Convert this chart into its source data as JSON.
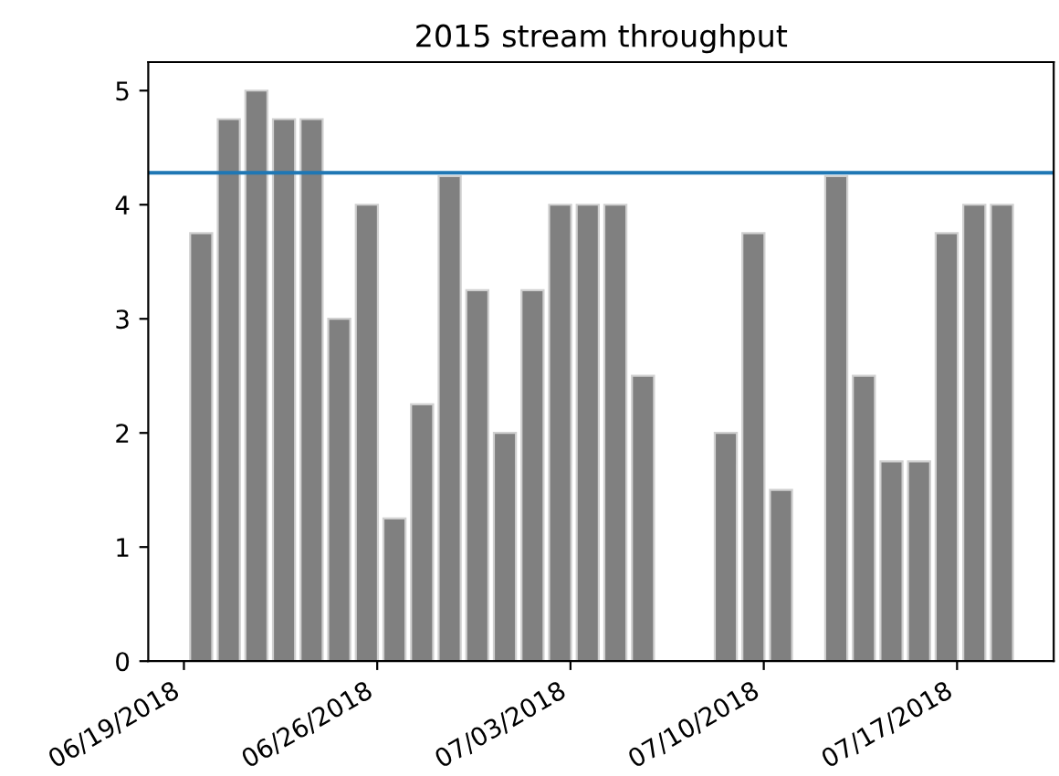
{
  "chart_data": {
    "type": "bar",
    "title": "2015 stream throughput",
    "x": [
      "2018-06-19T15:00",
      "2018-06-20T15:00",
      "2018-06-21T15:00",
      "2018-06-22T15:00",
      "2018-06-23T15:00",
      "2018-06-24T15:00",
      "2018-06-25T15:00",
      "2018-06-26T15:00",
      "2018-06-27T15:00",
      "2018-06-28T15:00",
      "2018-06-29T15:00",
      "2018-06-30T15:00",
      "2018-07-01T15:00",
      "2018-07-02T15:00",
      "2018-07-03T15:00",
      "2018-07-04T15:00",
      "2018-07-05T15:00",
      "2018-07-08T15:00",
      "2018-07-09T15:00",
      "2018-07-10T15:00",
      "2018-07-12T15:00",
      "2018-07-13T15:00",
      "2018-07-14T15:00",
      "2018-07-15T15:00",
      "2018-07-16T15:00",
      "2018-07-17T15:00",
      "2018-07-18T15:00"
    ],
    "values": [
      3.75,
      4.75,
      5,
      4.75,
      4.75,
      3,
      4,
      1.25,
      2.25,
      4.25,
      3.25,
      2,
      3.25,
      4,
      4,
      4,
      2.5,
      2,
      3.75,
      1.5,
      4.25,
      2.5,
      1.75,
      1.75,
      3.75,
      4,
      4
    ],
    "color": "#808080",
    "xlim": [
      "2018-06-17T17:00",
      "2018-07-20T12:00"
    ],
    "xticks": [
      {
        "value": "2018-06-19",
        "label": "06/19/2018"
      },
      {
        "value": "2018-06-26",
        "label": "06/26/2018"
      },
      {
        "value": "2018-07-03",
        "label": "07/03/2018"
      },
      {
        "value": "2018-07-10",
        "label": "07/10/2018"
      },
      {
        "value": "2018-07-17",
        "label": "07/17/2018"
      }
    ],
    "ylim": [
      0,
      5.25
    ],
    "yticks": [
      0,
      1,
      2,
      3,
      4,
      5
    ],
    "ref_lines": [
      {
        "axis": "y",
        "value": 4.28,
        "color": "#1f77b4"
      }
    ]
  }
}
